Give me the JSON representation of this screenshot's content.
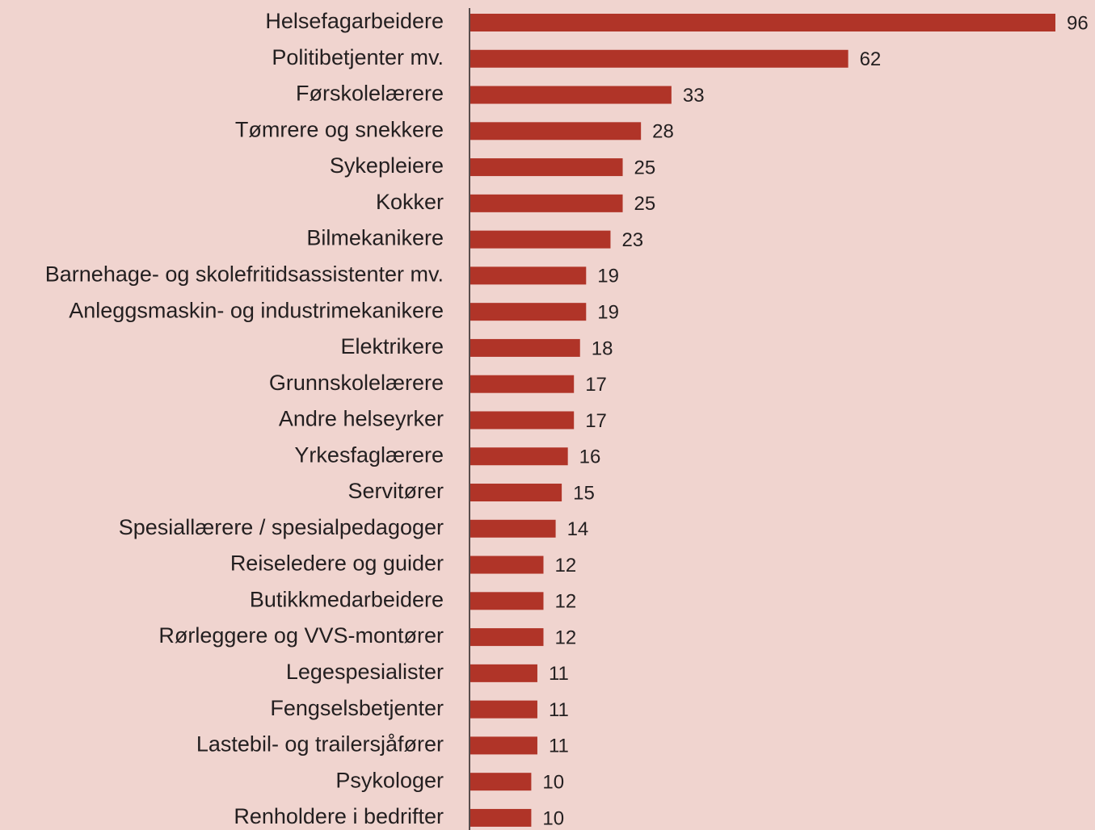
{
  "chart_data": {
    "type": "bar",
    "orientation": "horizontal",
    "color": "#b03428",
    "categories": [
      "Helsefagarbeidere",
      "Politibetjenter mv.",
      "Førskolelærere",
      "Tømrere og snekkere",
      "Sykepleiere",
      "Kokker",
      "Bilmekanikere",
      "Barnehage- og skolefritidsassistenter mv.",
      "Anleggsmaskin- og industrimekanikere",
      "Elektrikere",
      "Grunnskolelærere",
      "Andre helseyrker",
      "Yrkesfaglærere",
      "Servitører",
      "Spesiallærere / spesialpedagoger",
      "Reiseledere og guider",
      "Butikkmedarbeidere",
      "Rørleggere og VVS-montører",
      "Legespesialister",
      "Fengselsbetjenter",
      "Lastebil- og trailersjåfører",
      "Psykologer",
      "Renholdere i bedrifter"
    ],
    "values": [
      96,
      62,
      33,
      28,
      25,
      25,
      23,
      19,
      19,
      18,
      17,
      17,
      16,
      15,
      14,
      12,
      12,
      12,
      11,
      11,
      11,
      10,
      10
    ]
  }
}
